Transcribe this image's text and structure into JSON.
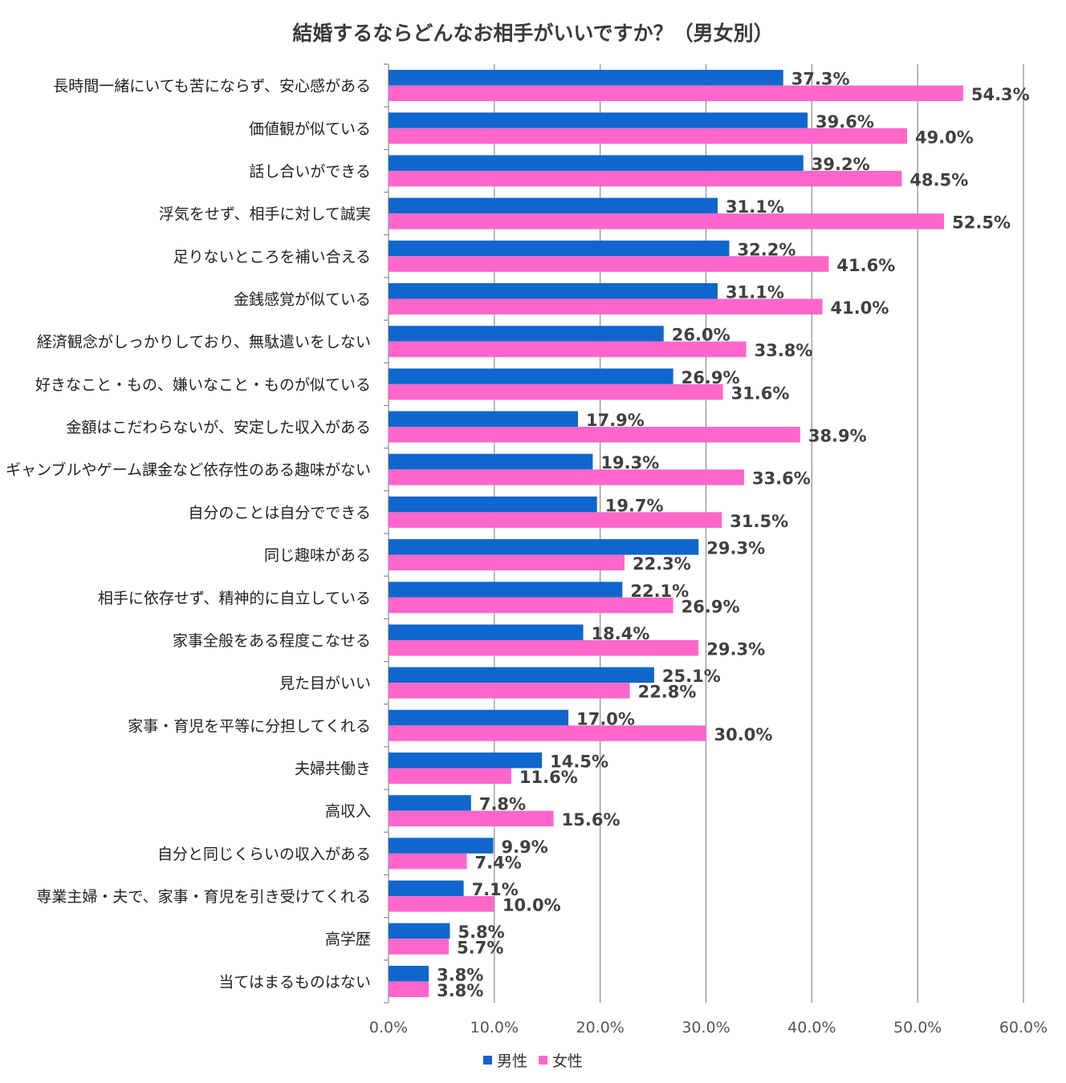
{
  "chart_data": {
    "type": "bar",
    "orientation": "horizontal",
    "title": "結婚するならどんなお相手がいいですか？（男女別）",
    "categories": [
      "長時間一緒にいても苦にならず、安心感がある",
      "価値観が似ている",
      "話し合いができる",
      "浮気をせず、相手に対して誠実",
      "足りないところを補い合える",
      "金銭感覚が似ている",
      "経済観念がしっかりしており、無駄遣いをしない",
      "好きなこと・もの、嫌いなこと・ものが似ている",
      "金額はこだわらないが、安定した収入がある",
      "ギャンブルやゲーム課金など依存性のある趣味がない",
      "自分のことは自分でできる",
      "同じ趣味がある",
      "相手に依存せず、精神的に自立している",
      "家事全般をある程度こなせる",
      "見た目がいい",
      "家事・育児を平等に分担してくれる",
      "夫婦共働き",
      "高収入",
      "自分と同じくらいの収入がある",
      "専業主婦・夫で、家事・育児を引き受けてくれる",
      "高学歴",
      "当てはまるものはない"
    ],
    "series": [
      {
        "name": "男性",
        "color": "#0f66cc",
        "values": [
          37.3,
          39.6,
          39.2,
          31.1,
          32.2,
          31.1,
          26.0,
          26.9,
          17.9,
          19.3,
          19.7,
          29.3,
          22.1,
          18.4,
          25.1,
          17.0,
          14.5,
          7.8,
          9.9,
          7.1,
          5.8,
          3.8
        ],
        "labels": [
          "37.3%",
          "39.6%",
          "39.2%",
          "31.1%",
          "32.2%",
          "31.1%",
          "26.0%",
          "26.9%",
          "17.9%",
          "19.3%",
          "19.7%",
          "29.3%",
          "22.1%",
          "18.4%",
          "25.1%",
          "17.0%",
          "14.5%",
          "7.8%",
          "9.9%",
          "7.1%",
          "5.8%",
          "3.8%"
        ]
      },
      {
        "name": "女性",
        "color": "#ff66cc",
        "values": [
          54.3,
          49.0,
          48.5,
          52.5,
          41.6,
          41.0,
          33.8,
          31.6,
          38.9,
          33.6,
          31.5,
          22.3,
          26.9,
          29.3,
          22.8,
          30.0,
          11.6,
          15.6,
          7.4,
          10.0,
          5.7,
          3.8
        ],
        "labels": [
          "54.3%",
          "49.0%",
          "48.5%",
          "52.5%",
          "41.6%",
          "41.0%",
          "33.8%",
          "31.6%",
          "38.9%",
          "33.6%",
          "31.5%",
          "22.3%",
          "26.9%",
          "29.3%",
          "22.8%",
          "30.0%",
          "11.6%",
          "15.6%",
          "7.4%",
          "10.0%",
          "5.7%",
          "3.8%"
        ]
      }
    ],
    "xlim": [
      0,
      60
    ],
    "xticks": [
      0,
      10,
      20,
      30,
      40,
      50,
      60
    ],
    "xtick_labels": [
      "0.0%",
      "10.0%",
      "20.0%",
      "30.0%",
      "40.0%",
      "50.0%",
      "60.0%"
    ],
    "grid": "vertical",
    "legend": "bottom"
  }
}
